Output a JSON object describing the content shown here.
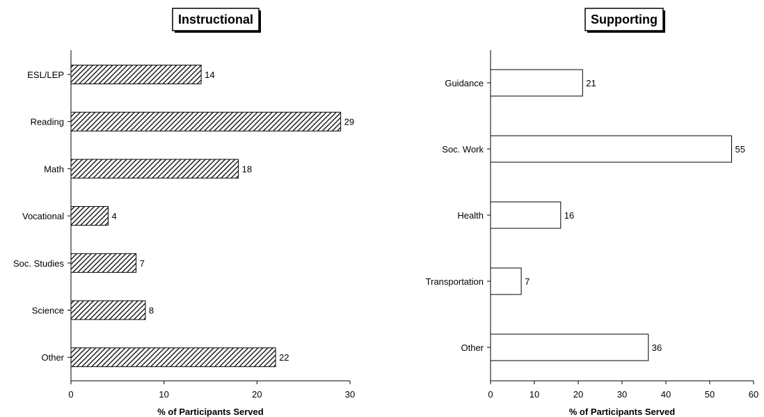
{
  "chart_data": [
    {
      "type": "bar",
      "orientation": "horizontal",
      "title": "Instructional",
      "xlabel": "% of Participants Served",
      "ylabel": "",
      "categories": [
        "ESL/LEP",
        "Reading",
        "Math",
        "Vocational",
        "Soc. Studies",
        "Science",
        "Other"
      ],
      "values": [
        14,
        29,
        18,
        4,
        7,
        8,
        22
      ],
      "xlim": [
        0,
        30
      ],
      "xticks": [
        0,
        10,
        20,
        30
      ],
      "bar_style": "hatched",
      "grid": false,
      "legend": "none"
    },
    {
      "type": "bar",
      "orientation": "horizontal",
      "title": "Supporting",
      "xlabel": "% of Participants Served",
      "ylabel": "",
      "categories": [
        "Guidance",
        "Soc. Work",
        "Health",
        "Transportation",
        "Other"
      ],
      "values": [
        21,
        55,
        16,
        7,
        36
      ],
      "xlim": [
        0,
        60
      ],
      "xticks": [
        0,
        10,
        20,
        30,
        40,
        50,
        60
      ],
      "bar_style": "white",
      "grid": false,
      "legend": "none"
    }
  ],
  "colors": {
    "bar_outline": "#000000",
    "background": "#ffffff",
    "white_bar_fill": "#ffffff"
  }
}
